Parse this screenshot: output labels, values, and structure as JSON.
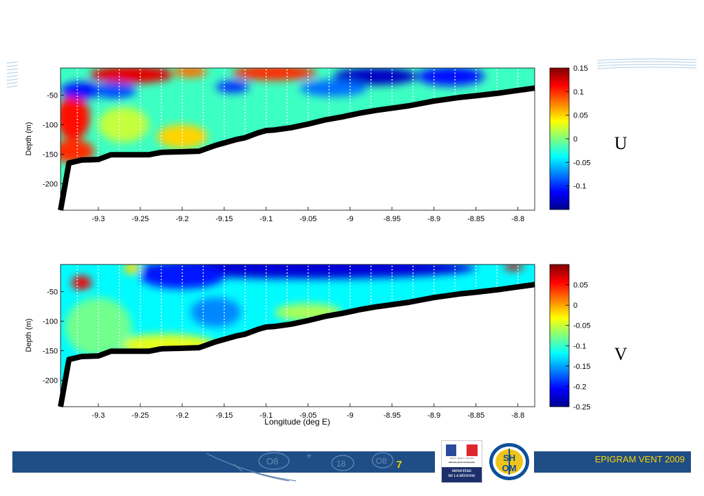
{
  "chart_data": [
    {
      "type": "heatmap",
      "panel_label": "U",
      "ylabel": "Depth (m)",
      "xlabel": "",
      "xlim": [
        -9.345,
        -8.78
      ],
      "ylim": [
        -245,
        -4
      ],
      "x_ticks": [
        -9.3,
        -9.25,
        -9.2,
        -9.15,
        -9.1,
        -9.05,
        -9,
        -8.95,
        -8.9,
        -8.85,
        -8.8
      ],
      "x_tick_labels": [
        "-9.3",
        "-9.25",
        "-9.2",
        "-9.15",
        "-9.1",
        "-9.05",
        "-9",
        "-8.95",
        "-8.9",
        "-8.85",
        "-8.8"
      ],
      "y_ticks": [
        -50,
        -100,
        -150,
        -200
      ],
      "y_tick_labels": [
        "-50",
        "-100",
        "-150",
        "-200"
      ],
      "colorbar": {
        "min": -0.15,
        "max": 0.15,
        "ticks": [
          0.15,
          0.1,
          0.05,
          0,
          -0.05,
          -0.1
        ],
        "tick_labels": [
          "0.15",
          "0.1",
          "0.05",
          "0",
          "-0.05",
          "-0.1"
        ]
      },
      "bathymetry": {
        "x": [
          -9.345,
          -9.335,
          -9.32,
          -9.3,
          -9.285,
          -9.26,
          -9.24,
          -9.225,
          -9.18,
          -9.16,
          -9.135,
          -9.125,
          -9.11,
          -9.1,
          -9.09,
          -9.08,
          -9.07,
          -9.05,
          -9.03,
          -9.01,
          -8.99,
          -8.97,
          -8.95,
          -8.93,
          -8.9,
          -8.87,
          -8.85,
          -8.82,
          -8.8,
          -8.78
        ],
        "depth": [
          -245,
          -165,
          -160,
          -159,
          -151,
          -151,
          -151,
          -147,
          -145,
          -135,
          -125,
          -122,
          -114,
          -110,
          -109,
          -107,
          -105,
          -99,
          -92,
          -87,
          -81,
          -76,
          -72,
          -68,
          -60,
          -54,
          -51,
          -46,
          -42,
          -38
        ]
      },
      "cell_deficits": [
        {
          "x": -9.146,
          "depth": -139
        },
        {
          "x": -9.12,
          "depth": -128
        },
        {
          "x": -9.098,
          "depth": -120
        },
        {
          "x": -9.024,
          "depth": -97
        },
        {
          "x": -9.0,
          "depth": -90
        },
        {
          "x": -8.952,
          "depth": -76
        },
        {
          "x": -8.9,
          "depth": -64
        },
        {
          "x": -8.874,
          "depth": -56
        },
        {
          "x": -8.847,
          "depth": -51
        }
      ],
      "station_x": [
        -9.325,
        -9.3,
        -9.275,
        -9.25,
        -9.225,
        -9.2,
        -9.175,
        -9.15,
        -9.125,
        -9.1,
        -9.075,
        -9.05,
        -9.025,
        -9.0,
        -8.975,
        -8.95,
        -8.925,
        -8.9,
        -8.875,
        -8.85,
        -8.825,
        -8.8
      ],
      "features": [
        {
          "x": -9.33,
          "depth": -88,
          "rx": 0.02,
          "ry": 38,
          "v": 0.11
        },
        {
          "x": -9.33,
          "depth": -145,
          "rx": 0.025,
          "ry": 20,
          "v": 0.1
        },
        {
          "x": -9.26,
          "depth": -15,
          "rx": 0.05,
          "ry": 15,
          "v": 0.12
        },
        {
          "x": -9.09,
          "depth": -12,
          "rx": 0.05,
          "ry": 13,
          "v": 0.1
        },
        {
          "x": -9.19,
          "depth": -10,
          "rx": 0.02,
          "ry": 10,
          "v": 0.08
        },
        {
          "x": -9.32,
          "depth": -42,
          "rx": 0.025,
          "ry": 14,
          "v": -0.11
        },
        {
          "x": -9.28,
          "depth": -42,
          "rx": 0.025,
          "ry": 14,
          "v": -0.09
        },
        {
          "x": -9.14,
          "depth": -36,
          "rx": 0.02,
          "ry": 10,
          "v": -0.1
        },
        {
          "x": -8.97,
          "depth": -18,
          "rx": 0.05,
          "ry": 15,
          "v": -0.13
        },
        {
          "x": -8.88,
          "depth": -18,
          "rx": 0.04,
          "ry": 16,
          "v": -0.11
        },
        {
          "x": -9.02,
          "depth": -38,
          "rx": 0.04,
          "ry": 14,
          "v": -0.08
        },
        {
          "x": -9.2,
          "depth": -120,
          "rx": 0.03,
          "ry": 20,
          "v": 0.05
        },
        {
          "x": -9.27,
          "depth": -100,
          "rx": 0.03,
          "ry": 30,
          "v": 0.02
        }
      ],
      "background_value": -0.02
    },
    {
      "type": "heatmap",
      "panel_label": "V",
      "ylabel": "Depth (m)",
      "xlabel": "Longitude (deg E)",
      "xlim": [
        -9.345,
        -8.78
      ],
      "ylim": [
        -245,
        -4
      ],
      "x_ticks": [
        -9.3,
        -9.25,
        -9.2,
        -9.15,
        -9.1,
        -9.05,
        -9,
        -8.95,
        -8.9,
        -8.85,
        -8.8
      ],
      "x_tick_labels": [
        "-9.3",
        "-9.25",
        "-9.2",
        "-9.15",
        "-9.1",
        "-9.05",
        "-9",
        "-8.95",
        "-8.9",
        "-8.85",
        "-8.8"
      ],
      "y_ticks": [
        -50,
        -100,
        -150,
        -200
      ],
      "y_tick_labels": [
        "-50",
        "-100",
        "-150",
        "-200"
      ],
      "colorbar": {
        "min": -0.25,
        "max": 0.1,
        "ticks": [
          0.05,
          0,
          -0.05,
          -0.1,
          -0.15,
          -0.2,
          -0.25
        ],
        "tick_labels": [
          "0.05",
          "0",
          "-0.05",
          "-0.1",
          "-0.15",
          "-0.2",
          "-0.25"
        ]
      },
      "bathymetry": {
        "x": [
          -9.345,
          -9.335,
          -9.32,
          -9.3,
          -9.285,
          -9.26,
          -9.24,
          -9.225,
          -9.18,
          -9.16,
          -9.135,
          -9.125,
          -9.11,
          -9.1,
          -9.09,
          -9.08,
          -9.07,
          -9.05,
          -9.03,
          -9.01,
          -8.99,
          -8.97,
          -8.95,
          -8.93,
          -8.9,
          -8.87,
          -8.85,
          -8.82,
          -8.8,
          -8.78
        ],
        "depth": [
          -245,
          -165,
          -160,
          -159,
          -151,
          -151,
          -151,
          -147,
          -145,
          -135,
          -125,
          -122,
          -114,
          -110,
          -109,
          -107,
          -105,
          -99,
          -92,
          -87,
          -81,
          -76,
          -72,
          -68,
          -60,
          -54,
          -51,
          -46,
          -42,
          -38
        ]
      },
      "cell_deficits": [
        {
          "x": -9.146,
          "depth": -139
        },
        {
          "x": -9.12,
          "depth": -128
        },
        {
          "x": -9.098,
          "depth": -120
        },
        {
          "x": -9.024,
          "depth": -97
        },
        {
          "x": -9.0,
          "depth": -90
        },
        {
          "x": -8.952,
          "depth": -76
        },
        {
          "x": -8.9,
          "depth": -64
        },
        {
          "x": -8.874,
          "depth": -56
        },
        {
          "x": -8.847,
          "depth": -51
        }
      ],
      "station_x": [
        -9.325,
        -9.3,
        -9.275,
        -9.25,
        -9.225,
        -9.2,
        -9.175,
        -9.15,
        -9.125,
        -9.1,
        -9.075,
        -9.05,
        -9.025,
        -9.0,
        -8.975,
        -8.95,
        -8.925,
        -8.9,
        -8.875,
        -8.85,
        -8.825,
        -8.8
      ],
      "features": [
        {
          "x": -9.32,
          "depth": -35,
          "rx": 0.012,
          "ry": 12,
          "v": 0.06
        },
        {
          "x": -8.805,
          "depth": -8,
          "rx": 0.012,
          "ry": 6,
          "v": 0.07
        },
        {
          "x": -9.26,
          "depth": -10,
          "rx": 0.01,
          "ry": 10,
          "v": -0.02
        },
        {
          "x": -9.22,
          "depth": -140,
          "rx": 0.06,
          "ry": 18,
          "v": -0.04
        },
        {
          "x": -9.3,
          "depth": -110,
          "rx": 0.04,
          "ry": 50,
          "v": -0.08
        },
        {
          "x": -9.05,
          "depth": -85,
          "rx": 0.04,
          "ry": 15,
          "v": -0.06
        },
        {
          "x": -9.05,
          "depth": -10,
          "rx": 0.2,
          "ry": 18,
          "v": -0.22
        },
        {
          "x": -9.2,
          "depth": -25,
          "rx": 0.05,
          "ry": 20,
          "v": -0.2
        },
        {
          "x": -9.16,
          "depth": -85,
          "rx": 0.03,
          "ry": 25,
          "v": -0.16
        }
      ],
      "background_value": -0.12
    }
  ],
  "footer": {
    "page_number": "7",
    "title": "EPIGRAM VENT 2009",
    "logo_ministere": {
      "line1": "Liberté • Égalité • Fraternité",
      "line2": "RÉPUBLIQUE FRANÇAISE",
      "line3": "MINISTÈRE",
      "line4": "DE LA DÉFENSE"
    },
    "logo_shom": "SHOM"
  },
  "colors": {
    "footer_bar": "#1f4e86",
    "footer_text": "#ffd400",
    "page_number": "#f2d200",
    "bathymetry": "#000000"
  }
}
